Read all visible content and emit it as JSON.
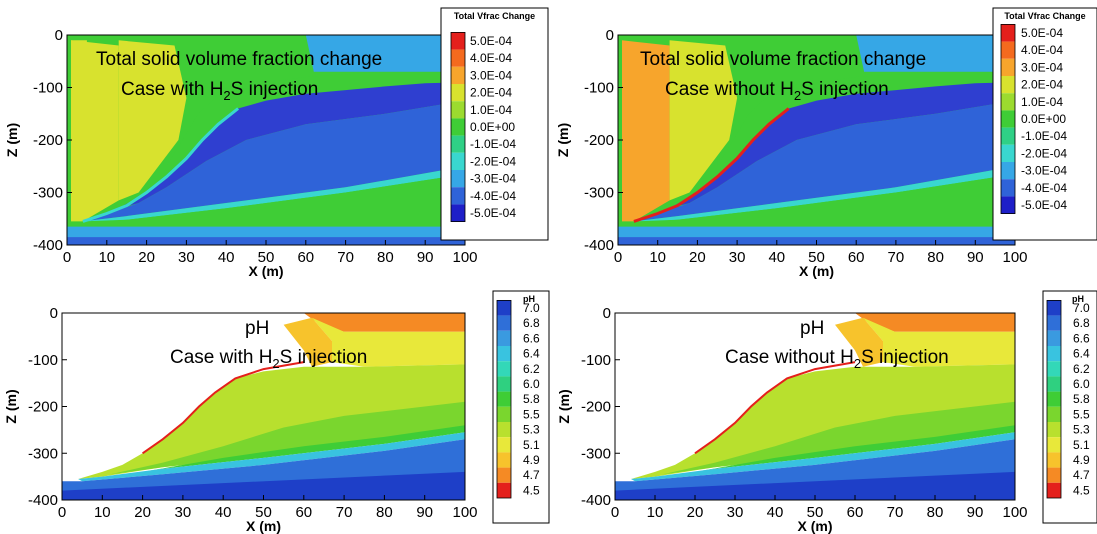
{
  "chart_data": [
    {
      "type": "heatmap",
      "id": "vfrac-with",
      "annotation_line1": "Total solid volume fraction change",
      "annotation_line2_pre": "Case with H",
      "annotation_line2_sub": "2",
      "annotation_line2_post": "S injection",
      "xlabel": "X (m)",
      "ylabel": "Z (m)",
      "xlim": [
        0,
        100
      ],
      "ylim": [
        -400,
        0
      ],
      "xticks": [
        "0",
        "10",
        "20",
        "30",
        "40",
        "50",
        "60",
        "70",
        "80",
        "90",
        "100"
      ],
      "yticks": [
        "0",
        "-100",
        "-200",
        "-300",
        "-400"
      ],
      "legend_title": "Total Vfrac Change",
      "legend_levels": [
        "5.0E-04",
        "4.0E-04",
        "3.0E-04",
        "2.0E-04",
        "1.0E-04",
        "0.0E+00",
        "-1.0E-04",
        "-2.0E-04",
        "-3.0E-04",
        "-4.0E-04",
        "-5.0E-04"
      ],
      "legend_colors": [
        "#e4201c",
        "#f46a1e",
        "#f7a52c",
        "#d8e22e",
        "#9cdb2f",
        "#3fcd36",
        "#2fd086",
        "#39d7cf",
        "#36a7e6",
        "#2f63d8",
        "#1e1fc8"
      ]
    },
    {
      "type": "heatmap",
      "id": "vfrac-without",
      "annotation_line1": "Total solid volume fraction change",
      "annotation_line2_pre": "Case without H",
      "annotation_line2_sub": "2",
      "annotation_line2_post": "S injection",
      "xlabel": "X (m)",
      "ylabel": "Z (m)",
      "xlim": [
        0,
        100
      ],
      "ylim": [
        -400,
        0
      ],
      "xticks": [
        "0",
        "10",
        "20",
        "30",
        "40",
        "50",
        "60",
        "70",
        "80",
        "90",
        "100"
      ],
      "yticks": [
        "0",
        "-100",
        "-200",
        "-300",
        "-400"
      ],
      "legend_title": "Total Vfrac Change",
      "legend_levels": [
        "5.0E-04",
        "4.0E-04",
        "3.0E-04",
        "2.0E-04",
        "1.0E-04",
        "0.0E+00",
        "-1.0E-04",
        "-2.0E-04",
        "-3.0E-04",
        "-4.0E-04",
        "-5.0E-04"
      ],
      "legend_colors": [
        "#e4201c",
        "#f46a1e",
        "#f7a52c",
        "#d8e22e",
        "#9cdb2f",
        "#3fcd36",
        "#2fd086",
        "#39d7cf",
        "#36a7e6",
        "#2f63d8",
        "#1e1fc8"
      ]
    },
    {
      "type": "heatmap",
      "id": "ph-with",
      "annotation_line1": "pH",
      "annotation_line2_pre": "Case with H",
      "annotation_line2_sub": "2",
      "annotation_line2_post": "S injection",
      "xlabel": "X (m)",
      "ylabel": "Z (m)",
      "xlim": [
        0,
        100
      ],
      "ylim": [
        -400,
        0
      ],
      "xticks": [
        "0",
        "10",
        "20",
        "30",
        "40",
        "50",
        "60",
        "70",
        "80",
        "90",
        "100"
      ],
      "yticks": [
        "0",
        "-100",
        "-200",
        "-300",
        "-400"
      ],
      "legend_title": "pH",
      "legend_levels": [
        "7.0",
        "6.8",
        "6.6",
        "6.4",
        "6.2",
        "6.0",
        "5.8",
        "5.5",
        "5.3",
        "5.1",
        "4.9",
        "4.7",
        "4.5"
      ],
      "legend_colors": [
        "#1e3fc8",
        "#2f6fd8",
        "#3a9ae0",
        "#39c3e0",
        "#33d8b8",
        "#2fd080",
        "#3fcd36",
        "#7ad62e",
        "#b8e02e",
        "#e8e83a",
        "#f7c32c",
        "#f58a24",
        "#e4201c"
      ]
    },
    {
      "type": "heatmap",
      "id": "ph-without",
      "annotation_line1": "pH",
      "annotation_line2_pre": "Case without H",
      "annotation_line2_sub": "2",
      "annotation_line2_post": "S injection",
      "xlabel": "X (m)",
      "ylabel": "Z (m)",
      "xlim": [
        0,
        100
      ],
      "ylim": [
        -400,
        0
      ],
      "xticks": [
        "0",
        "10",
        "20",
        "30",
        "40",
        "50",
        "60",
        "70",
        "80",
        "90",
        "100"
      ],
      "yticks": [
        "0",
        "-100",
        "-200",
        "-300",
        "-400"
      ],
      "legend_title": "pH",
      "legend_levels": [
        "7.0",
        "6.8",
        "6.6",
        "6.4",
        "6.2",
        "6.0",
        "5.8",
        "5.5",
        "5.3",
        "5.1",
        "4.9",
        "4.7",
        "4.5"
      ],
      "legend_colors": [
        "#1e3fc8",
        "#2f6fd8",
        "#3a9ae0",
        "#39c3e0",
        "#33d8b8",
        "#2fd080",
        "#3fcd36",
        "#7ad62e",
        "#b8e02e",
        "#e8e83a",
        "#f7c32c",
        "#f58a24",
        "#e4201c"
      ]
    }
  ]
}
